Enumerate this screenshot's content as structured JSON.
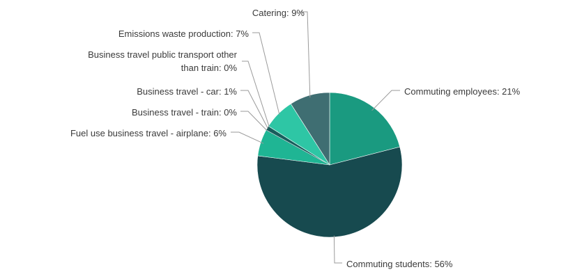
{
  "chart_data": {
    "type": "pie",
    "title": "",
    "slices": [
      {
        "label": "Commuting employees",
        "value": 21,
        "display": "Commuting employees: 21%",
        "color": "#1a9a80"
      },
      {
        "label": "Commuting students",
        "value": 56,
        "display": "Commuting students: 56%",
        "color": "#174a4f"
      },
      {
        "label": "Fuel use business travel - airplane",
        "value": 6,
        "display": "Fuel use business travel - airplane: 6%",
        "color": "#1fb594"
      },
      {
        "label": "Business travel - train",
        "value": 0,
        "display": "Business travel - train: 0%",
        "color": "#1c6f6a"
      },
      {
        "label": "Business travel - car",
        "value": 1,
        "display": "Business travel - car: 1%",
        "color": "#185d5c"
      },
      {
        "label": "Business travel public transport other than train",
        "value": 0,
        "display_lines": [
          "Business travel public transport other",
          "than train: 0%"
        ],
        "color": "#23a58c"
      },
      {
        "label": "Emissions waste production",
        "value": 7,
        "display": "Emissions waste production: 7%",
        "color": "#2ec6a5"
      },
      {
        "label": "Catering",
        "value": 9,
        "display": "Catering: 9%",
        "color": "#3f6e72"
      }
    ],
    "legend": "none",
    "label_style": "outside labels with leader lines"
  }
}
